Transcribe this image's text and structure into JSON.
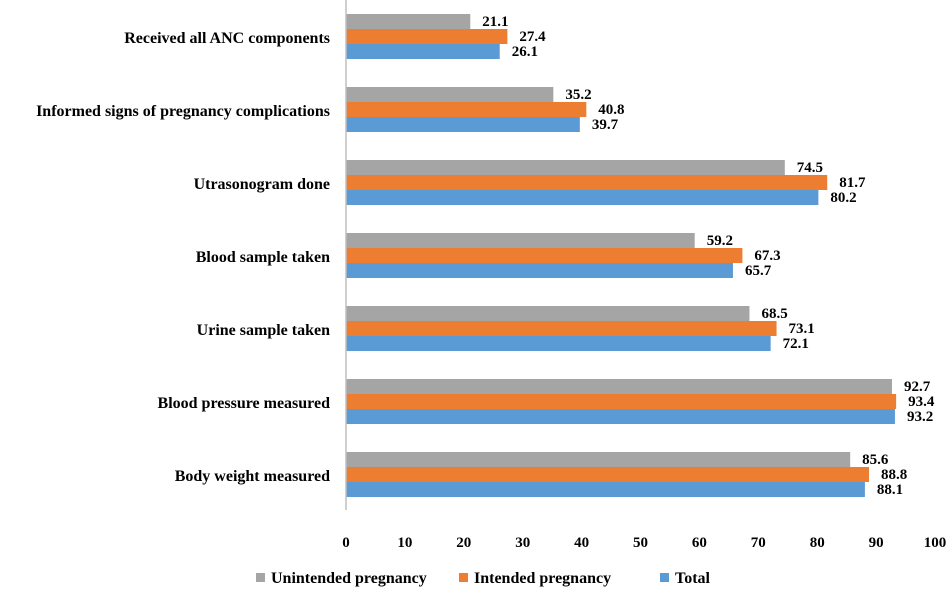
{
  "chart_data": {
    "type": "bar",
    "orientation": "horizontal",
    "title": "",
    "xlabel": "",
    "ylabel": "",
    "xlim": [
      0,
      100
    ],
    "x_ticks": [
      "0",
      "10",
      "20",
      "30",
      "40",
      "50",
      "60",
      "70",
      "80",
      "90",
      "100"
    ],
    "grid": false,
    "legend_position": "bottom",
    "categories": [
      "Received all ANC components",
      "Informed signs of pregnancy complications",
      "Utrasonogram done",
      "Blood sample taken",
      "Urine sample taken",
      "Blood pressure measured",
      "Body weight measured"
    ],
    "series": [
      {
        "name": "Unintended pregnancy",
        "color": "#a5a5a5",
        "values": [
          21.1,
          35.2,
          74.5,
          59.2,
          68.5,
          92.7,
          85.6
        ],
        "labels": [
          "21.1",
          "35.2",
          "74.5",
          "59.2",
          "68.5",
          "92.7",
          "85.6"
        ]
      },
      {
        "name": "Intended pregnancy",
        "color": "#ed7d31",
        "values": [
          27.4,
          40.8,
          81.7,
          67.3,
          73.1,
          93.4,
          88.8
        ],
        "labels": [
          "27.4",
          "40.8",
          "81.7",
          "67.3",
          "73.1",
          "93.4",
          "88.8"
        ]
      },
      {
        "name": "Total",
        "color": "#5b9bd5",
        "values": [
          26.1,
          39.7,
          80.2,
          65.7,
          72.1,
          93.2,
          88.1
        ],
        "labels": [
          "26.1",
          "39.7",
          "80.2",
          "65.7",
          "72.1",
          "93.2",
          "88.1"
        ]
      }
    ]
  }
}
